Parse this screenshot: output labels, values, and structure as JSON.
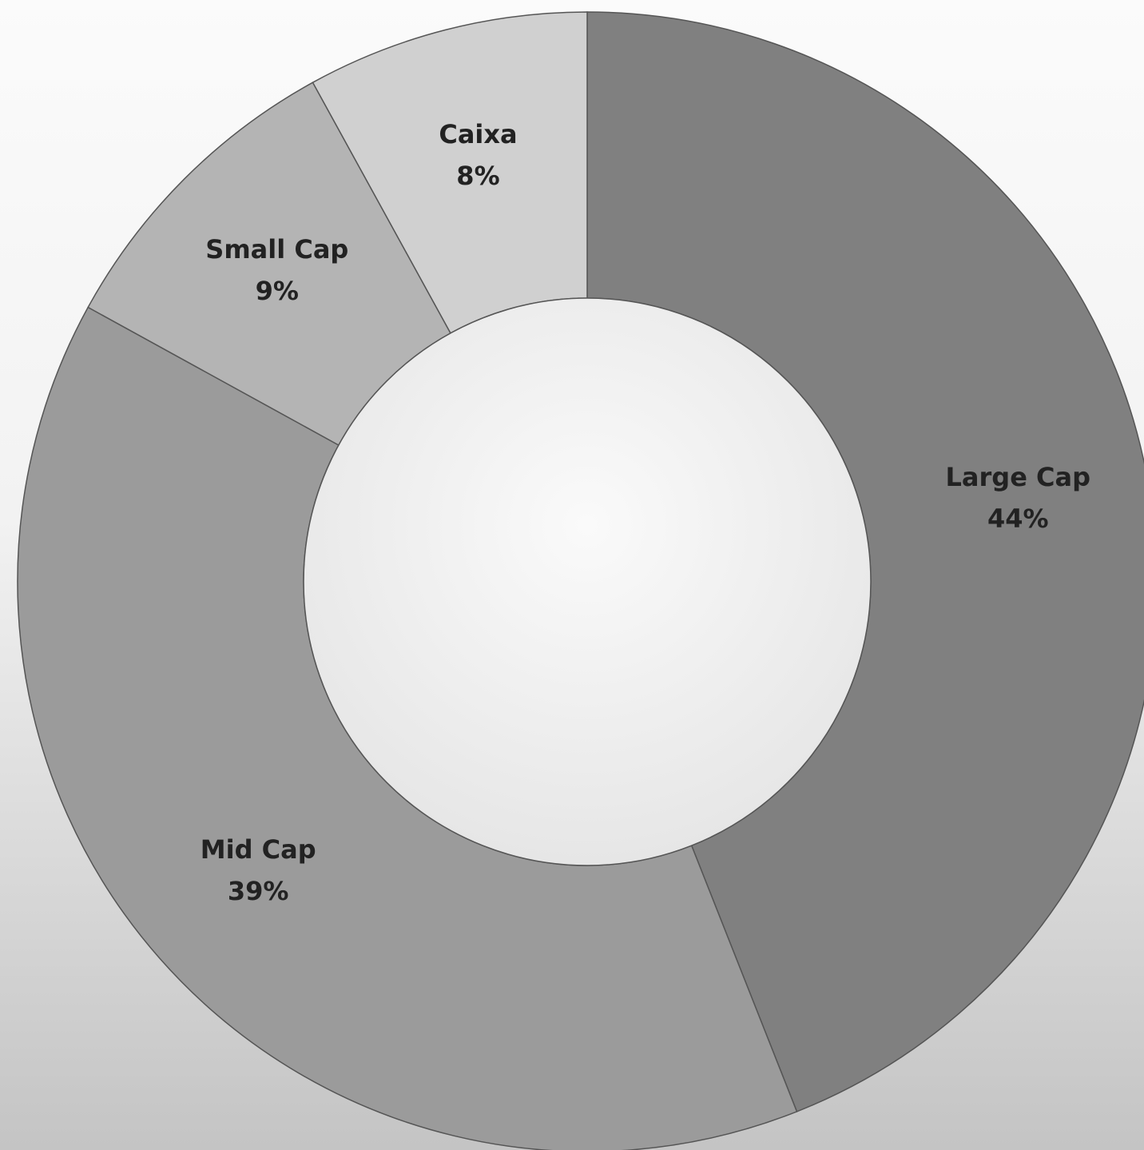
{
  "chart_data": {
    "type": "donut",
    "categories": [
      "Large Cap",
      "Mid Cap",
      "Small Cap",
      "Caixa"
    ],
    "values": [
      44,
      39,
      9,
      8
    ],
    "value_labels": [
      "44%",
      "39%",
      "9%",
      "8%"
    ],
    "colors": [
      "#808080",
      "#9b9b9b",
      "#b4b4b4",
      "#d0d0d0"
    ]
  }
}
